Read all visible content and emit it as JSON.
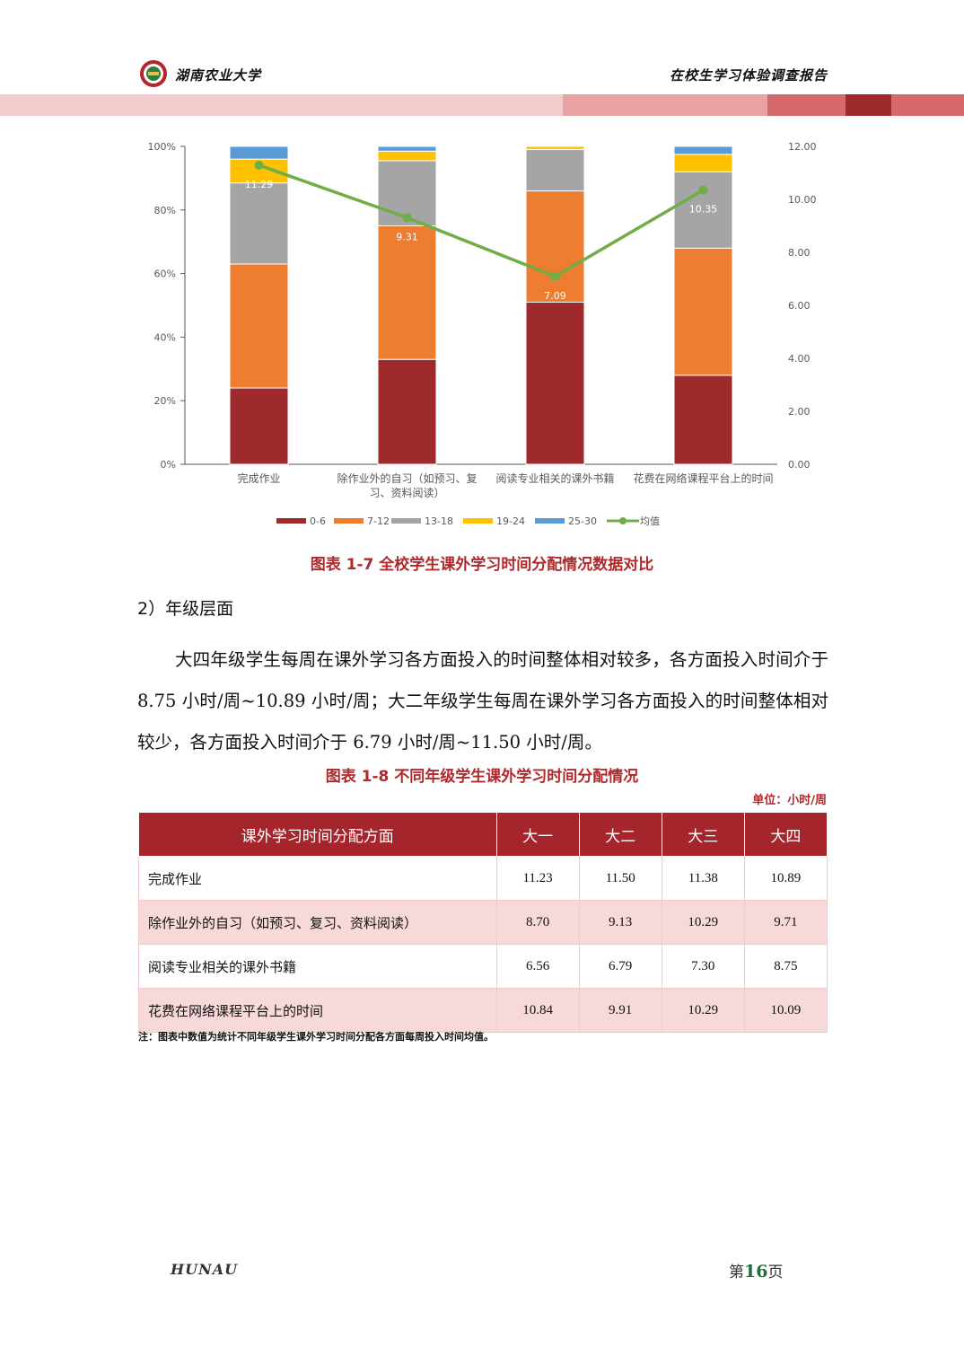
{
  "header": {
    "university": "湖南农业大学",
    "report_title": "在校生学习体验调查报告",
    "band_colors": [
      "#f2cccd",
      "#e9a3a5",
      "#d5696c",
      "#9e2a2b",
      "#d5696c"
    ]
  },
  "chart_caption": "图表 1-7 全校学生课外学习时间分配情况数据对比",
  "chart_data": {
    "type": "bar",
    "stacked": true,
    "categories": [
      "完成作业",
      "除作业外的自习（如预习、复习、资料阅读）",
      "阅读专业相关的课外书籍",
      "花费在网络课程平台上的时间"
    ],
    "category_lines": [
      [
        "完成作业"
      ],
      [
        "除作业外的自习（如预习、复",
        "习、资料阅读）"
      ],
      [
        "阅读专业相关的课外书籍"
      ],
      [
        "花费在网络课程平台上的时间"
      ]
    ],
    "series": [
      {
        "name": "0-6",
        "color": "#9e2a2b",
        "values": [
          24,
          33,
          51,
          28
        ]
      },
      {
        "name": "7-12",
        "color": "#ed7d31",
        "values": [
          39,
          42,
          35,
          40
        ]
      },
      {
        "name": "13-18",
        "color": "#a5a5a5",
        "values": [
          25.5,
          20.5,
          13,
          24
        ]
      },
      {
        "name": "19-24",
        "color": "#ffc000",
        "values": [
          7.5,
          3,
          1,
          5.5
        ]
      },
      {
        "name": "25-30",
        "color": "#5b9bd5",
        "values": [
          4,
          1.5,
          0,
          2.5
        ]
      }
    ],
    "line_series": {
      "name": "均值",
      "color": "#70ad47",
      "values": [
        11.29,
        9.31,
        7.09,
        10.35
      ],
      "labels": [
        "11.29",
        "9.31",
        "7.09",
        "10.35"
      ]
    },
    "y_left": {
      "min": 0,
      "max": 100,
      "ticks": [
        "0%",
        "20%",
        "40%",
        "60%",
        "80%",
        "100%"
      ]
    },
    "y_right": {
      "min": 0,
      "max": 12,
      "ticks": [
        "0.00",
        "2.00",
        "4.00",
        "6.00",
        "8.00",
        "10.00",
        "12.00"
      ]
    },
    "legend_position": "bottom",
    "grid": false
  },
  "section_heading": "2）年级层面",
  "paragraph": "大四年级学生每周在课外学习各方面投入的时间整体相对较多，各方面投入时间介于 8.75 小时/周~10.89 小时/周；大二年级学生每周在课外学习各方面投入的时间整体相对较少，各方面投入时间介于 6.79 小时/周~11.50 小时/周。",
  "table_caption": "图表 1-8 不同年级学生课外学习时间分配情况",
  "table_unit": "单位：小时/周",
  "table": {
    "headers": [
      "课外学习时间分配方面",
      "大一",
      "大二",
      "大三",
      "大四"
    ],
    "rows": [
      [
        "完成作业",
        "11.23",
        "11.50",
        "11.38",
        "10.89"
      ],
      [
        "除作业外的自习（如预习、复习、资料阅读）",
        "8.70",
        "9.13",
        "10.29",
        "9.71"
      ],
      [
        "阅读专业相关的课外书籍",
        "6.56",
        "6.79",
        "7.30",
        "8.75"
      ],
      [
        "花费在网络课程平台上的时间",
        "10.84",
        "9.91",
        "10.29",
        "10.09"
      ]
    ]
  },
  "note": "注：图表中数值为统计不同年级学生课外学习时间分配各方面每周投入时间均值。",
  "footer": {
    "left": "HUNAU",
    "page_prefix": "第",
    "page_number": "16",
    "page_suffix": "页"
  }
}
